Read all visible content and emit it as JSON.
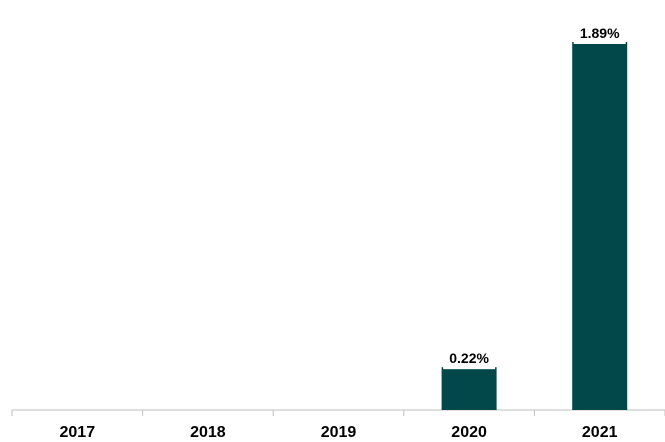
{
  "chart_data": {
    "type": "bar",
    "categories": [
      "2017",
      "2018",
      "2019",
      "2020",
      "2021"
    ],
    "values": [
      null,
      null,
      null,
      0.22,
      1.89
    ],
    "data_labels": [
      "",
      "",
      "",
      "0.22%",
      "1.89%"
    ],
    "unit": "%",
    "title": "",
    "xlabel": "",
    "ylabel": "",
    "ylim": [
      0,
      1.89
    ],
    "grid": false,
    "legend": "none",
    "colors": {
      "bar": "#02484A",
      "axis": "#bfbfbf",
      "label_box": "#ffffff"
    }
  }
}
